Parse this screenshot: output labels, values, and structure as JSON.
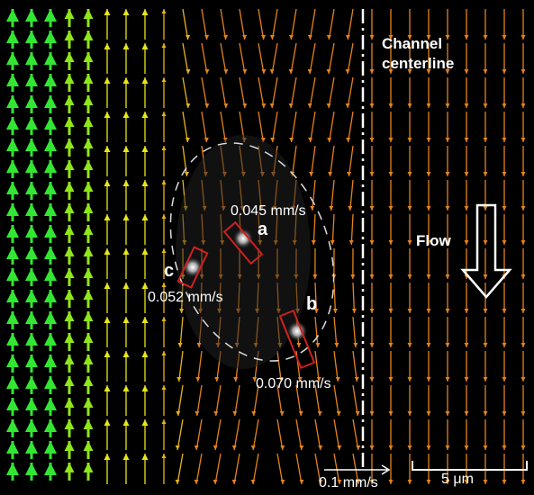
{
  "labels": {
    "centerline": "Channel centerline",
    "flow": "Flow",
    "particles": [
      {
        "letter": "a",
        "speed": "0.045 mm/s"
      },
      {
        "letter": "b",
        "speed": "0.070 mm/s"
      },
      {
        "letter": "c",
        "speed": "0.052 mm/s"
      }
    ],
    "velocity_scale": "0.1 mm/s",
    "length_scale": "5 μm"
  }
}
